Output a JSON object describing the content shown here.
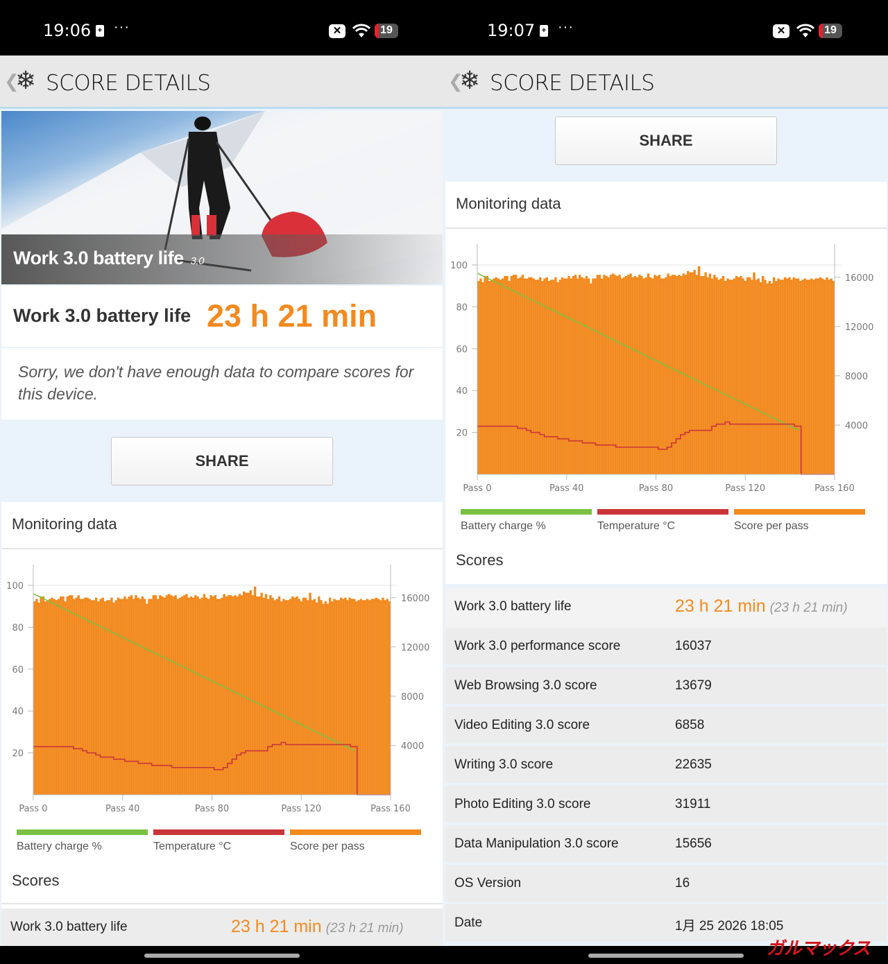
{
  "colors": {
    "accent": "#f28a1f",
    "battery": "#7ac143",
    "temperature": "#c93538",
    "score": "#f28a1f",
    "header_bg": "#e8e8e8"
  },
  "left": {
    "status": {
      "time": "19:06",
      "battery": "19"
    },
    "header": {
      "title": "SCORE DETAILS",
      "back_icon": "chevron-left-icon",
      "logo_icon": "snowflake-icon"
    },
    "hero": {
      "title": "Work 3.0 battery life",
      "version": "3.0"
    },
    "score": {
      "label": "Work 3.0 battery life",
      "value": "23 h 21 min"
    },
    "compare_message": "Sorry, we don't have enough data to compare scores for this device.",
    "share_label": "SHARE",
    "monitoring_title": "Monitoring data",
    "scores_title": "Scores",
    "rows": [
      {
        "label": "Work 3.0 battery life",
        "value": "23 h 21 min",
        "secondary": "(23 h 21 min)"
      }
    ]
  },
  "right": {
    "status": {
      "time": "19:07",
      "battery": "19"
    },
    "header": {
      "title": "SCORE DETAILS"
    },
    "share_label": "SHARE",
    "monitoring_title": "Monitoring data",
    "scores_title": "Scores",
    "rows": [
      {
        "label": "Work 3.0 battery life",
        "value": "23 h 21 min",
        "secondary": "(23 h 21 min)"
      },
      {
        "label": "Work 3.0 performance score",
        "value": "16037"
      },
      {
        "label": "Web Browsing 3.0 score",
        "value": "13679"
      },
      {
        "label": "Video Editing 3.0 score",
        "value": "6858"
      },
      {
        "label": "Writing 3.0 score",
        "value": "22635"
      },
      {
        "label": "Photo Editing 3.0 score",
        "value": "31911"
      },
      {
        "label": "Data Manipulation 3.0 score",
        "value": "15656"
      },
      {
        "label": "OS Version",
        "value": "16"
      },
      {
        "label": "Date",
        "value": "1月 25 2026 18:05"
      }
    ],
    "watermark": "ガルマックス"
  },
  "chart_data": {
    "type": "bar",
    "x_tick_labels": [
      "Pass 0",
      "Pass 40",
      "Pass 80",
      "Pass 120",
      "Pass 160"
    ],
    "x_ticks": [
      0,
      40,
      80,
      120,
      160
    ],
    "xlim": [
      0,
      160
    ],
    "left_axis": {
      "ticks": [
        100,
        80,
        60,
        40,
        20
      ],
      "ylim": [
        0,
        100
      ]
    },
    "right_axis": {
      "ticks": [
        16000,
        12000,
        8000,
        4000
      ],
      "ylim": [
        0,
        17000
      ]
    },
    "legend": [
      {
        "name": "Battery charge %",
        "color": "#7ac143"
      },
      {
        "name": "Temperature °C",
        "color": "#c93538"
      },
      {
        "name": "Score per pass",
        "color": "#f28a1f"
      }
    ],
    "legend_position": "bottom",
    "series": [
      {
        "name": "Score per pass",
        "axis": "right",
        "kind": "bar",
        "values": [
          15700,
          15900,
          15600,
          16100,
          16100,
          15700,
          15800,
          15900,
          16000,
          15900,
          15800,
          15900,
          16100,
          16100,
          15700,
          16100,
          16200,
          16200,
          15900,
          16000,
          16200,
          15900,
          15900,
          16000,
          16000,
          15900,
          15800,
          15800,
          16000,
          15700,
          15900,
          16000,
          15700,
          15800,
          15800,
          16000,
          15600,
          15800,
          16000,
          15900,
          15900,
          16100,
          15900,
          16100,
          16200,
          15900,
          16200,
          16000,
          15900,
          16100,
          15900,
          15500,
          15900,
          15900,
          16200,
          16200,
          15900,
          16200,
          16100,
          16000,
          16200,
          16300,
          16200,
          16100,
          16200,
          15900,
          16000,
          16100,
          16200,
          16300,
          16000,
          16100,
          16000,
          16200,
          16100,
          15900,
          16000,
          16300,
          16000,
          15900,
          16200,
          16100,
          16200,
          15900,
          15900,
          16000,
          16300,
          16100,
          16200,
          16200,
          16100,
          16200,
          16100,
          16300,
          16200,
          16500,
          16400,
          16400,
          16600,
          16200,
          16900,
          16100,
          16100,
          16400,
          16000,
          16300,
          15900,
          16200,
          16000,
          15800,
          15900,
          16100,
          15700,
          15900,
          15800,
          15800,
          15900,
          16100,
          16000,
          16100,
          15900,
          15700,
          16000,
          16000,
          15800,
          16400,
          15800,
          15900,
          15600,
          16100,
          15800,
          15500,
          15700,
          15500,
          16000,
          15700,
          15900,
          15800,
          15800,
          16000,
          15900,
          16000,
          15800,
          16000,
          15900,
          15900,
          15700,
          15800,
          15900,
          15800,
          15800,
          15900,
          15800,
          15900,
          15900,
          16000,
          15900,
          15800,
          16000,
          15800,
          15900,
          15700
        ]
      },
      {
        "name": "Battery charge %",
        "axis": "left",
        "kind": "line",
        "points": [
          [
            0,
            96
          ],
          [
            144,
            21
          ]
        ]
      },
      {
        "name": "Temperature °C",
        "axis": "left",
        "kind": "step",
        "points": [
          [
            0,
            23
          ],
          [
            18,
            22
          ],
          [
            22,
            21
          ],
          [
            24,
            20
          ],
          [
            28,
            19
          ],
          [
            30,
            18
          ],
          [
            36,
            17
          ],
          [
            41,
            16
          ],
          [
            47,
            15
          ],
          [
            53,
            14
          ],
          [
            62,
            13
          ],
          [
            81,
            12
          ],
          [
            85,
            13
          ],
          [
            87,
            15
          ],
          [
            89,
            17
          ],
          [
            91,
            19
          ],
          [
            93,
            20
          ],
          [
            95,
            21
          ],
          [
            105,
            23
          ],
          [
            107,
            24
          ],
          [
            111,
            25
          ],
          [
            113,
            24
          ],
          [
            142,
            23
          ],
          [
            145,
            0
          ],
          [
            160,
            0
          ]
        ]
      }
    ]
  }
}
